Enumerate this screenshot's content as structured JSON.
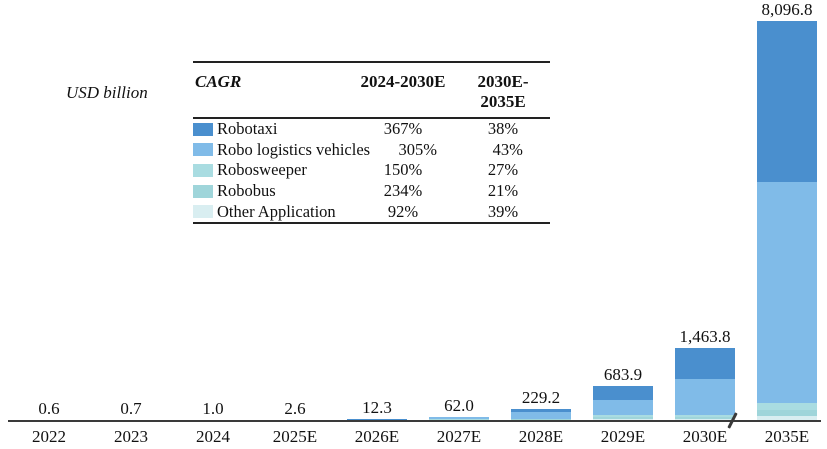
{
  "unit_label": "USD billion",
  "chart_data": {
    "type": "stacked-bar",
    "title": "",
    "xlabel": "",
    "ylabel": "USD billion",
    "grid": false,
    "ylim": [
      0,
      8300
    ],
    "axis_break_between": [
      "2030E",
      "2035E"
    ],
    "categories": [
      "2022",
      "2023",
      "2024",
      "2025E",
      "2026E",
      "2027E",
      "2028E",
      "2029E",
      "2030E",
      "2035E"
    ],
    "totals": [
      0.6,
      0.7,
      1.0,
      2.6,
      12.3,
      62.0,
      229.2,
      683.9,
      1463.8,
      8096.8
    ],
    "total_labels": [
      "0.6",
      "0.7",
      "1.0",
      "2.6",
      "12.3",
      "62.0",
      "229.2",
      "683.9",
      "1,463.8",
      "8,096.8"
    ],
    "stack_order_bottom_to_top": [
      "Other Application",
      "Robobus",
      "Robosweeper",
      "Robo logistics vehicles",
      "Robotaxi"
    ],
    "series": [
      {
        "name": "Robotaxi",
        "color": "#4a8fce",
        "values": [
          0.1,
          0.1,
          0.1,
          0.5,
          2.5,
          10.0,
          60.0,
          280.0,
          627.0,
          3260.0
        ]
      },
      {
        "name": "Robo logistics vehicles",
        "color": "#80bbe8",
        "values": [
          0.2,
          0.2,
          0.3,
          1.2,
          7.0,
          40.0,
          140.0,
          310.0,
          732.0,
          4495.0
        ]
      },
      {
        "name": "Robosweeper",
        "color": "#a9dce1",
        "values": [
          0.1,
          0.1,
          0.2,
          0.3,
          1.0,
          5.0,
          12.0,
          40.0,
          45.0,
          148.5
        ]
      },
      {
        "name": "Robobus",
        "color": "#9fd5da",
        "values": [
          0.1,
          0.2,
          0.2,
          0.4,
          1.3,
          5.0,
          13.0,
          40.0,
          45.0,
          116.6
        ]
      },
      {
        "name": "Other Application",
        "color": "#d9eef1",
        "values": [
          0.1,
          0.1,
          0.2,
          0.2,
          0.5,
          2.0,
          4.2,
          13.9,
          14.8,
          76.7
        ]
      }
    ]
  },
  "legend_table": {
    "header": {
      "name": "CAGR",
      "col1": "2024-2030E",
      "col2": "2030E-2035E"
    },
    "rows": [
      {
        "label": "Robotaxi",
        "swatch": "#4a8fce",
        "cagr_2024_2030": "367%",
        "cagr_2030_2035": "38%"
      },
      {
        "label": "Robo logistics vehicles",
        "swatch": "#80bbe8",
        "cagr_2024_2030": "305%",
        "cagr_2030_2035": "43%"
      },
      {
        "label": "Robosweeper",
        "swatch": "#a9dce1",
        "cagr_2024_2030": "150%",
        "cagr_2030_2035": "27%"
      },
      {
        "label": "Robobus",
        "swatch": "#9fd5da",
        "cagr_2024_2030": "234%",
        "cagr_2030_2035": "21%"
      },
      {
        "label": "Other Application",
        "swatch": "#d9eef1",
        "cagr_2024_2030": "92%",
        "cagr_2030_2035": "39%"
      }
    ]
  },
  "colors": {
    "axis": "#3a3a3a",
    "text": "#111111"
  }
}
